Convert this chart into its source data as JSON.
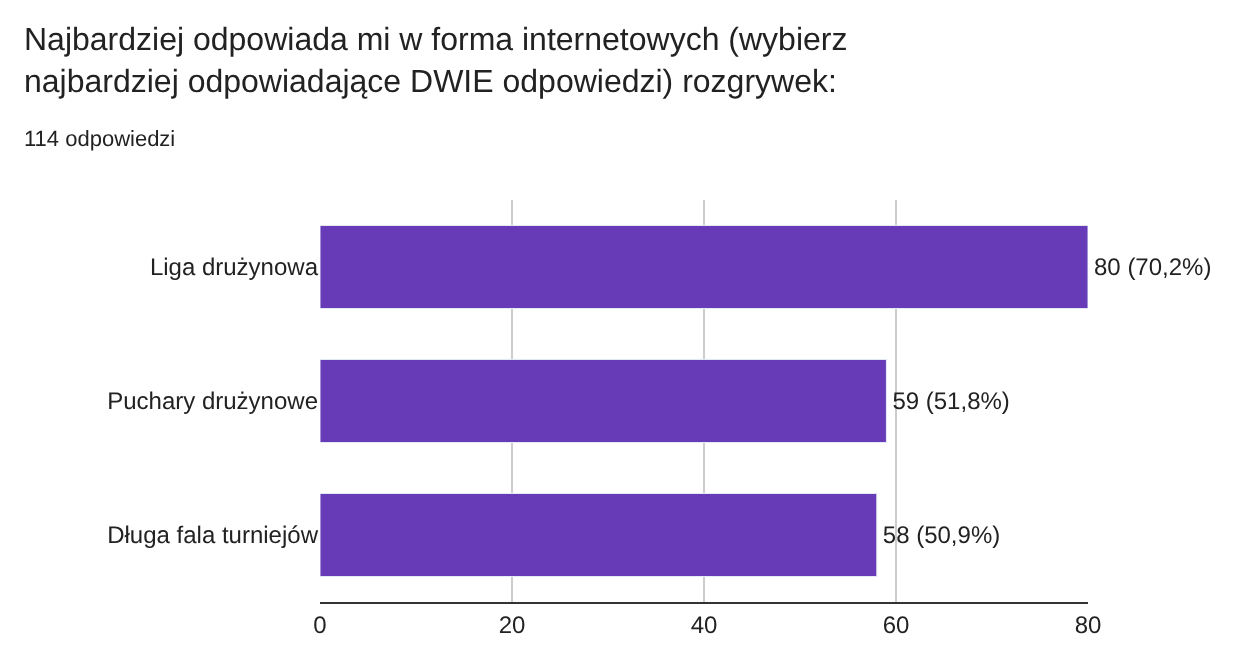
{
  "chart_data": {
    "type": "bar",
    "orientation": "horizontal",
    "title": "Najbardziej odpowiada mi w forma internetowych (wybierz najbardziej odpowiadające DWIE odpowiedzi) rozgrywek:",
    "subtitle": "114 odpowiedzi",
    "categories": [
      "Liga drużynowa",
      "Puchary drużynowe",
      "Długa fala turniejów"
    ],
    "values": [
      80,
      59,
      58
    ],
    "color": "#673ab7",
    "value_labels": [
      "80 (70,2%)",
      "59 (51,8%)",
      "58 (50,9%)"
    ],
    "xlim": [
      0,
      80
    ],
    "xticks": [
      0,
      20,
      40,
      60,
      80
    ],
    "grid": "x",
    "legend": false
  }
}
